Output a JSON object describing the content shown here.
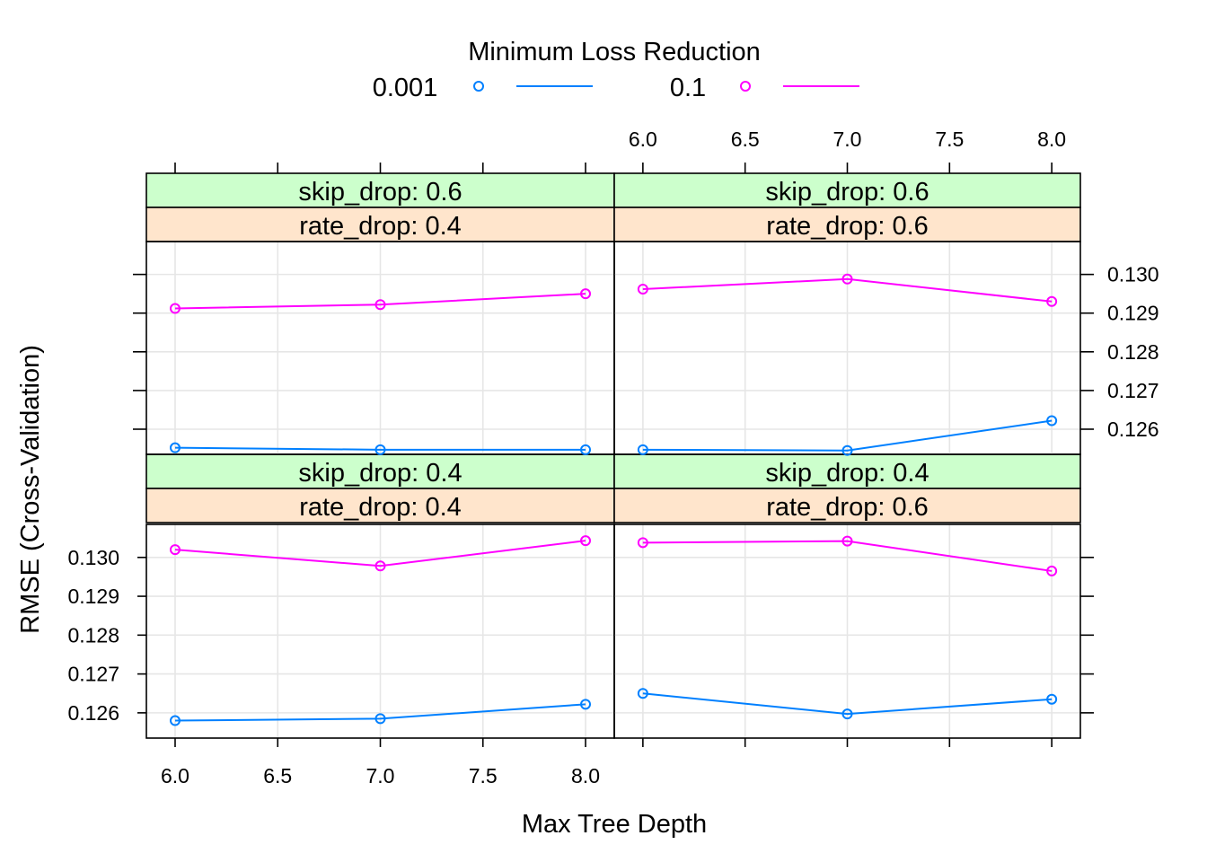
{
  "chart_data": {
    "type": "line",
    "legend_title": "Minimum Loss Reduction",
    "legend_position": "top",
    "xlabel": "Max Tree Depth",
    "ylabel": "RMSE (Cross-Validation)",
    "x": [
      6,
      7,
      8
    ],
    "x_ticks": [
      "6.0",
      "6.5",
      "7.0",
      "7.5",
      "8.0"
    ],
    "y_ticks": [
      "0.126",
      "0.127",
      "0.128",
      "0.129",
      "0.130"
    ],
    "xlim": [
      5.86,
      8.14
    ],
    "ylim": [
      0.12535,
      0.13085
    ],
    "grid": true,
    "series_styles": [
      {
        "name": "0.001",
        "color": "#0080ff"
      },
      {
        "name": "0.1",
        "color": "#ff00ff"
      }
    ],
    "panels": [
      {
        "skip_drop": "skip_drop: 0.4",
        "rate_drop": "rate_drop: 0.4",
        "series": [
          {
            "name": "0.001",
            "values": [
              0.1258,
              0.12585,
              0.12622
            ]
          },
          {
            "name": "0.1",
            "values": [
              0.1302,
              0.12978,
              0.13043
            ]
          }
        ]
      },
      {
        "skip_drop": "skip_drop: 0.4",
        "rate_drop": "rate_drop: 0.6",
        "series": [
          {
            "name": "0.001",
            "values": [
              0.1265,
              0.12597,
              0.12635
            ]
          },
          {
            "name": "0.1",
            "values": [
              0.13038,
              0.13042,
              0.12965
            ]
          }
        ]
      },
      {
        "skip_drop": "skip_drop: 0.6",
        "rate_drop": "rate_drop: 0.4",
        "series": [
          {
            "name": "0.001",
            "values": [
              0.12552,
              0.12547,
              0.12547
            ]
          },
          {
            "name": "0.1",
            "values": [
              0.12912,
              0.12922,
              0.1295
            ]
          }
        ]
      },
      {
        "skip_drop": "skip_drop: 0.6",
        "rate_drop": "rate_drop: 0.6",
        "series": [
          {
            "name": "0.001",
            "values": [
              0.12547,
              0.12545,
              0.12622
            ]
          },
          {
            "name": "0.1",
            "values": [
              0.12962,
              0.12988,
              0.1293
            ]
          }
        ]
      }
    ],
    "colors": {
      "strip_top": "#ccffcc",
      "strip_bottom": "#ffe5cc",
      "grid": "#e6e6e6"
    }
  }
}
